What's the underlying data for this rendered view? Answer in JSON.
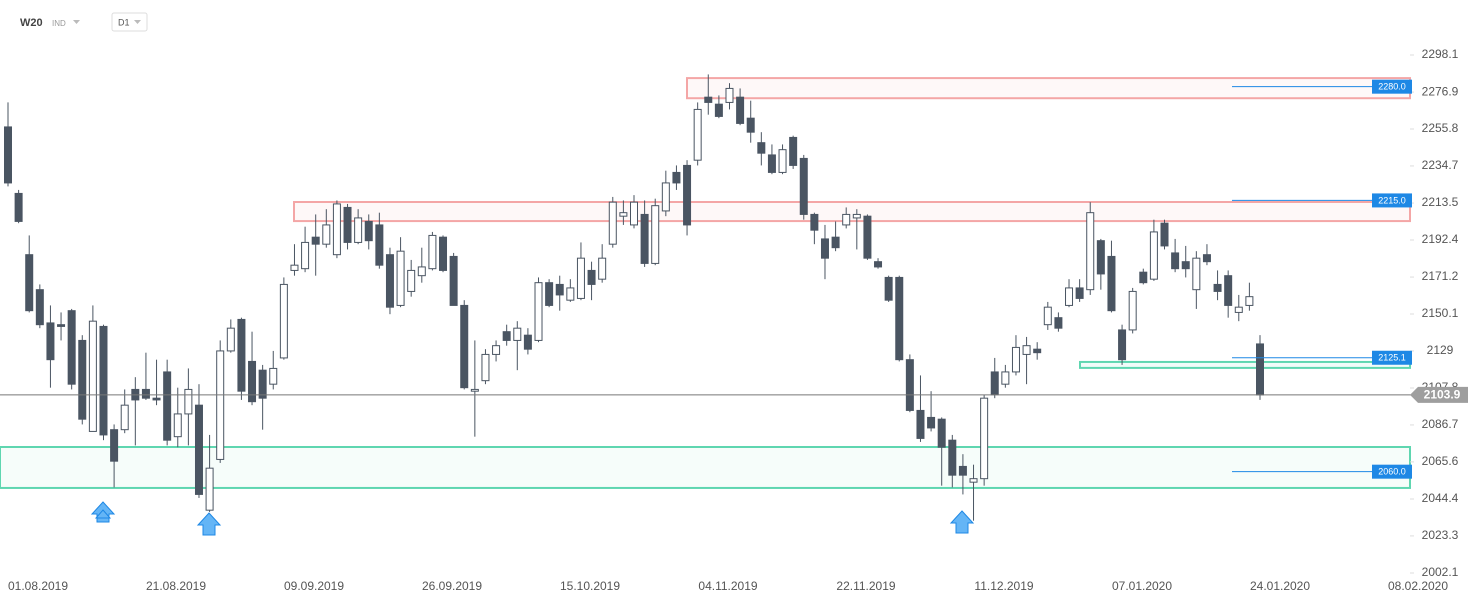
{
  "header": {
    "symbol": "W20",
    "market": "IND",
    "interval": "D1"
  },
  "chart_data": {
    "type": "candlestick",
    "x_labels": [
      "01.08.2019",
      "21.08.2019",
      "09.09.2019",
      "26.09.2019",
      "15.10.2019",
      "04.11.2019",
      "22.11.2019",
      "11.12.2019",
      "07.01.2020",
      "24.01.2020",
      "08.02.2020"
    ],
    "open": [
      2257,
      2219,
      2184,
      2164,
      2145,
      2144,
      2152,
      2135,
      2083,
      2143,
      2084,
      2084,
      2107,
      2107,
      2102,
      2117,
      2080,
      2093,
      2098,
      2038,
      2067,
      2129,
      2147,
      2123,
      2118,
      2110,
      2125,
      2175,
      2176,
      2194,
      2190,
      2184,
      2211,
      2191,
      2203,
      2201,
      2184,
      2155,
      2163,
      2172,
      2176,
      2194,
      2183,
      2155,
      2106,
      2112,
      2127,
      2140,
      2135,
      2138,
      2135,
      2168,
      2167,
      2158,
      2159,
      2175,
      2170,
      2190,
      2206,
      2201,
      2207,
      2179,
      2209,
      2231,
      2235,
      2238,
      2274,
      2270,
      2271,
      2274,
      2262,
      2248,
      2241,
      2231,
      2251,
      2239,
      2207,
      2193,
      2194,
      2201,
      2205,
      2206,
      2180,
      2171,
      2171,
      2124,
      2095,
      2091,
      2090,
      2078,
      2063,
      2054,
      2056,
      2117,
      2110,
      2117,
      2127,
      2130,
      2144,
      2148,
      2155,
      2165,
      2164,
      2192,
      2183,
      2141,
      2141,
      2174,
      2170,
      2202,
      2185,
      2180,
      2164,
      2184,
      2167,
      2172,
      2151,
      2155,
      2133
    ],
    "high": [
      2271,
      2221,
      2195,
      2167,
      2155,
      2151,
      2153,
      2138,
      2155,
      2144,
      2087,
      2107,
      2114,
      2128,
      2124,
      2124,
      2108,
      2119,
      2110,
      2081,
      2135,
      2147,
      2148,
      2140,
      2121,
      2129,
      2171,
      2190,
      2200,
      2207,
      2210,
      2215,
      2213,
      2210,
      2207,
      2208,
      2188,
      2194,
      2181,
      2188,
      2197,
      2195,
      2185,
      2158,
      2135,
      2130,
      2135,
      2144,
      2146,
      2142,
      2171,
      2170,
      2172,
      2170,
      2191,
      2180,
      2190,
      2217,
      2215,
      2218,
      2215,
      2216,
      2232,
      2235,
      2238,
      2271,
      2287,
      2275,
      2282,
      2279,
      2272,
      2254,
      2247,
      2247,
      2252,
      2241,
      2208,
      2201,
      2203,
      2211,
      2210,
      2207,
      2182,
      2172,
      2172,
      2127,
      2115,
      2106,
      2091,
      2081,
      2070,
      2064,
      2104,
      2125,
      2121,
      2138,
      2137,
      2134,
      2157,
      2151,
      2170,
      2170,
      2214,
      2193,
      2192,
      2144,
      2165,
      2176,
      2204,
      2204,
      2193,
      2189,
      2186,
      2190,
      2175,
      2175,
      2161,
      2168,
      2138
    ],
    "low": [
      2223,
      2202,
      2151,
      2142,
      2108,
      2135,
      2107,
      2087,
      2083,
      2078,
      2051,
      2082,
      2075,
      2101,
      2098,
      2075,
      2074,
      2075,
      2045,
      2037,
      2065,
      2128,
      2101,
      2098,
      2084,
      2107,
      2124,
      2172,
      2174,
      2172,
      2188,
      2182,
      2187,
      2190,
      2187,
      2176,
      2150,
      2154,
      2160,
      2168,
      2175,
      2174,
      2155,
      2107,
      2080,
      2110,
      2123,
      2132,
      2118,
      2127,
      2134,
      2154,
      2152,
      2157,
      2158,
      2158,
      2168,
      2188,
      2201,
      2199,
      2177,
      2178,
      2206,
      2221,
      2195,
      2235,
      2264,
      2262,
      2267,
      2258,
      2248,
      2235,
      2230,
      2230,
      2233,
      2204,
      2190,
      2170,
      2186,
      2199,
      2187,
      2181,
      2176,
      2157,
      2123,
      2094,
      2077,
      2083,
      2052,
      2051,
      2047,
      2032,
      2052,
      2102,
      2108,
      2115,
      2110,
      2124,
      2141,
      2140,
      2154,
      2157,
      2161,
      2164,
      2151,
      2121,
      2139,
      2167,
      2169,
      2187,
      2174,
      2171,
      2153,
      2178,
      2158,
      2148,
      2146,
      2152,
      2101
    ],
    "close": [
      2225,
      2203,
      2152,
      2144,
      2124,
      2143,
      2110,
      2090,
      2146,
      2081,
      2066,
      2098,
      2101,
      2102,
      2101,
      2078,
      2093,
      2107,
      2047,
      2062,
      2129,
      2142,
      2106,
      2100,
      2102,
      2119,
      2167,
      2178,
      2191,
      2190,
      2201,
      2213,
      2191,
      2205,
      2192,
      2178,
      2154,
      2186,
      2175,
      2177,
      2195,
      2175,
      2155,
      2108,
      2107,
      2127,
      2132,
      2135,
      2142,
      2130,
      2168,
      2155,
      2161,
      2165,
      2182,
      2167,
      2182,
      2214,
      2208,
      2214,
      2179,
      2212,
      2225,
      2225,
      2201,
      2267,
      2271,
      2263,
      2279,
      2259,
      2254,
      2242,
      2231,
      2244,
      2235,
      2207,
      2198,
      2182,
      2188,
      2207,
      2207,
      2182,
      2177,
      2158,
      2124,
      2095,
      2079,
      2085,
      2074,
      2058,
      2058,
      2056,
      2102,
      2104,
      2117,
      2131,
      2132,
      2128,
      2154,
      2142,
      2165,
      2159,
      2208,
      2173,
      2152,
      2124,
      2163,
      2168,
      2197,
      2189,
      2176,
      2176,
      2182,
      2180,
      2163,
      2155,
      2154,
      2160,
      2103.9
    ],
    "up_color": "#ffffff",
    "down_color": "#4a5562",
    "ylim": [
      2002.1,
      2298.1
    ],
    "yticks": [
      2298.1,
      2276.9,
      2255.8,
      2234.7,
      2213.5,
      2192.4,
      2171.2,
      2150.1,
      2129.0,
      2107.8,
      2086.7,
      2065.6,
      2044.4,
      2023.3,
      2002.1
    ],
    "zones": [
      {
        "top": 2284.9,
        "bottom": 2273.4,
        "color": "#f4a6a6"
      },
      {
        "top": 2214.1,
        "bottom": 2203.2,
        "color": "#f4a6a6"
      },
      {
        "top": 2122.7,
        "bottom": 2119.3,
        "color": "#5fd6b0"
      },
      {
        "top": 2074.1,
        "bottom": 2050.7,
        "color": "#5fd6b0"
      }
    ],
    "levels": [
      {
        "value": 2280,
        "label": "2280.0"
      },
      {
        "value": 2215,
        "label": "2215.0"
      },
      {
        "value": 2125.1,
        "label": "2125.1"
      },
      {
        "value": 2060,
        "label": "2060.0"
      }
    ],
    "level_color": "#1e88e5",
    "last_price": 2103.9
  }
}
